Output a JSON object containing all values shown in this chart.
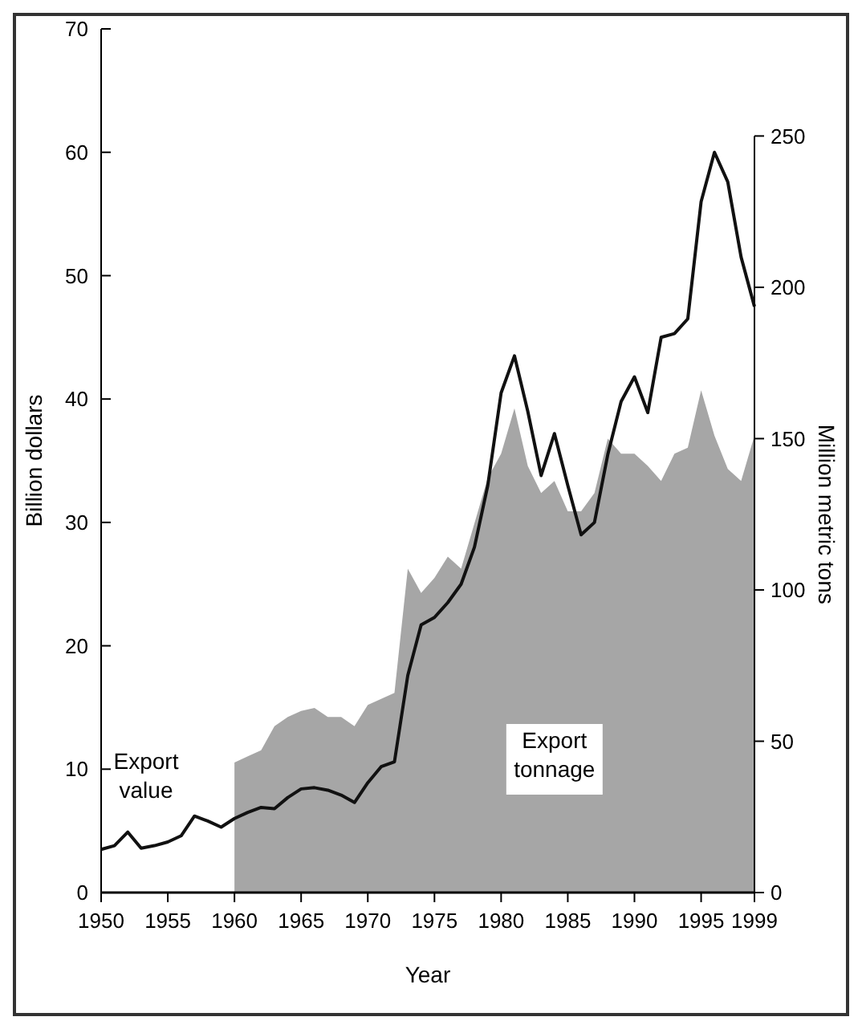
{
  "chart_data": {
    "type": "line",
    "xlabel": "Year",
    "ylabel": "Billion dollars",
    "y2label": "Million metric tons",
    "xlim": [
      1950,
      1999
    ],
    "xticks": [
      1950,
      1955,
      1960,
      1965,
      1970,
      1975,
      1980,
      1985,
      1990,
      1995,
      1999
    ],
    "ylim": [
      0,
      70
    ],
    "yticks": [
      0,
      10,
      20,
      30,
      40,
      50,
      60,
      70
    ],
    "y2lim": [
      0,
      250
    ],
    "y2ticks": [
      0,
      50,
      100,
      150,
      200,
      250
    ],
    "grid": false,
    "marker": "none",
    "line_style": "solid",
    "series": [
      {
        "name": "Export tonnage",
        "type": "area",
        "axis": "y2",
        "color": "#a6a6a6",
        "x": [
          1960,
          1961,
          1962,
          1963,
          1964,
          1965,
          1966,
          1967,
          1968,
          1969,
          1970,
          1971,
          1972,
          1973,
          1974,
          1975,
          1976,
          1977,
          1978,
          1979,
          1980,
          1981,
          1982,
          1983,
          1984,
          1985,
          1986,
          1987,
          1988,
          1989,
          1990,
          1991,
          1992,
          1993,
          1994,
          1995,
          1996,
          1997,
          1998,
          1999
        ],
        "values": [
          43,
          45,
          47,
          55,
          58,
          60,
          61,
          58,
          58,
          55,
          62,
          64,
          66,
          107,
          99,
          104,
          111,
          107,
          122,
          137,
          145,
          160,
          141,
          132,
          136,
          126,
          126,
          132,
          150,
          145,
          145,
          141,
          136,
          145,
          147,
          166,
          151,
          140,
          136,
          151
        ]
      },
      {
        "name": "Export value",
        "axis": "y",
        "color": "#111111",
        "x": [
          1950,
          1951,
          1952,
          1953,
          1954,
          1955,
          1956,
          1957,
          1958,
          1959,
          1960,
          1961,
          1962,
          1963,
          1964,
          1965,
          1966,
          1967,
          1968,
          1969,
          1970,
          1971,
          1972,
          1973,
          1974,
          1975,
          1976,
          1977,
          1978,
          1979,
          1980,
          1981,
          1982,
          1983,
          1984,
          1985,
          1986,
          1987,
          1988,
          1989,
          1990,
          1991,
          1992,
          1993,
          1994,
          1995,
          1996,
          1997,
          1998,
          1999
        ],
        "values": [
          3.5,
          3.8,
          4.9,
          3.6,
          3.8,
          4.1,
          4.6,
          6.2,
          5.8,
          5.3,
          6.0,
          6.5,
          6.9,
          6.8,
          7.7,
          8.4,
          8.5,
          8.3,
          7.9,
          7.3,
          8.9,
          10.2,
          10.6,
          17.6,
          21.7,
          22.3,
          23.5,
          25.0,
          28.0,
          33.0,
          40.5,
          43.5,
          39.0,
          33.8,
          37.2,
          33.0,
          29.0,
          30.0,
          35.5,
          39.8,
          41.8,
          38.9,
          45.0,
          45.3,
          46.5,
          56.0,
          60.0,
          57.6,
          51.5,
          47.5
        ]
      }
    ]
  }
}
